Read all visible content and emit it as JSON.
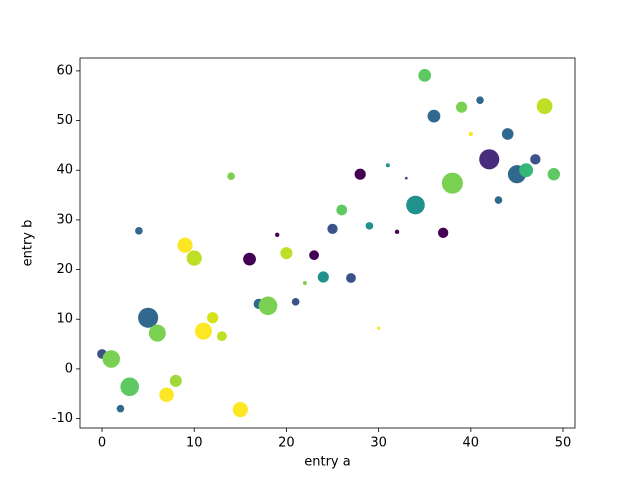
{
  "chart_data": {
    "type": "scatter",
    "x_label": "entry a",
    "y_label": "entry b",
    "x": [
      0,
      1,
      2,
      3,
      4,
      5,
      6,
      7,
      8,
      9,
      10,
      11,
      12,
      13,
      14,
      15,
      16,
      17,
      18,
      19,
      20,
      21,
      22,
      23,
      24,
      25,
      26,
      27,
      28,
      29,
      30,
      31,
      32,
      33,
      34,
      35,
      36,
      37,
      38,
      39,
      40,
      41,
      42,
      43,
      44,
      45,
      46,
      47,
      48,
      49
    ],
    "y": [
      3.0,
      2.0,
      -8.0,
      -3.6,
      27.8,
      10.3,
      7.2,
      -5.2,
      -2.4,
      24.9,
      22.3,
      7.6,
      10.3,
      6.6,
      38.8,
      -8.2,
      22.1,
      13.1,
      12.7,
      27.0,
      23.3,
      13.5,
      17.3,
      22.9,
      18.5,
      28.2,
      32.0,
      18.3,
      39.2,
      28.8,
      8.2,
      41.0,
      27.6,
      38.4,
      33.0,
      59.1,
      50.9,
      27.4,
      37.4,
      52.7,
      47.3,
      54.1,
      42.2,
      34.0,
      47.3,
      39.2,
      40.0,
      42.2,
      52.9,
      39.2
    ],
    "sizes": [
      50,
      160,
      30,
      180,
      30,
      210,
      150,
      110,
      75,
      120,
      120,
      150,
      65,
      50,
      30,
      120,
      85,
      55,
      180,
      10,
      75,
      30,
      8,
      50,
      65,
      55,
      60,
      50,
      65,
      30,
      6,
      8,
      10,
      4,
      180,
      85,
      85,
      55,
      230,
      65,
      10,
      30,
      210,
      30,
      70,
      170,
      100,
      55,
      130,
      80
    ],
    "colors": [
      "#3b528b",
      "#7ad151",
      "#31688e",
      "#5ec962",
      "#31688e",
      "#31688e",
      "#7ad151",
      "#fde725",
      "#a0da39",
      "#fde725",
      "#bddf26",
      "#fde725",
      "#d8e219",
      "#bddf26",
      "#7ad151",
      "#fde725",
      "#440154",
      "#31688e",
      "#7ad151",
      "#440154",
      "#bddf26",
      "#3b528b",
      "#7ad151",
      "#440154",
      "#21918c",
      "#3b528b",
      "#5ec962",
      "#3b528b",
      "#440154",
      "#21918c",
      "#fde725",
      "#21918c",
      "#440154",
      "#3b528b",
      "#21918c",
      "#5ec962",
      "#31688e",
      "#440154",
      "#7ad151",
      "#7ad151",
      "#fde725",
      "#31688e",
      "#472d7b",
      "#31688e",
      "#31688e",
      "#31688e",
      "#35b779",
      "#3b528b",
      "#bddf26",
      "#5ec962"
    ],
    "xlim": [
      -2.39,
      51.3
    ],
    "ylim": [
      -11.9,
      62.6
    ],
    "xticks": [
      0,
      10,
      20,
      30,
      40,
      50
    ],
    "yticks": [
      -10,
      0,
      10,
      20,
      30,
      40,
      50,
      60
    ]
  }
}
